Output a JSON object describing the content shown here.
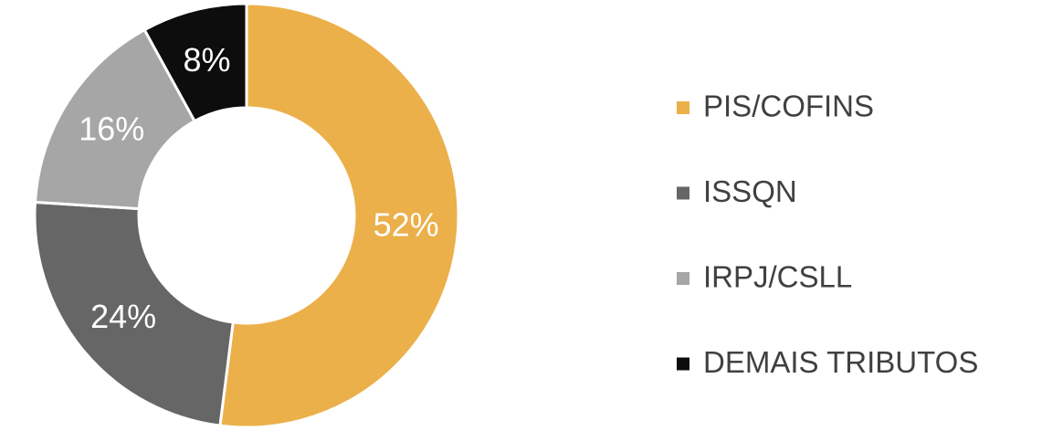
{
  "chart_data": {
    "type": "donut",
    "categories": [
      "PIS/COFINS",
      "ISSQN",
      "IRPJ/CSLL",
      "DEMAIS TRIBUTOS"
    ],
    "values": [
      52,
      24,
      16,
      8
    ],
    "value_labels": [
      "52%",
      "24%",
      "16%",
      "8%"
    ],
    "colors": [
      "#ebb04a",
      "#666666",
      "#a6a6a6",
      "#0d0d0d"
    ],
    "legend": "right"
  }
}
